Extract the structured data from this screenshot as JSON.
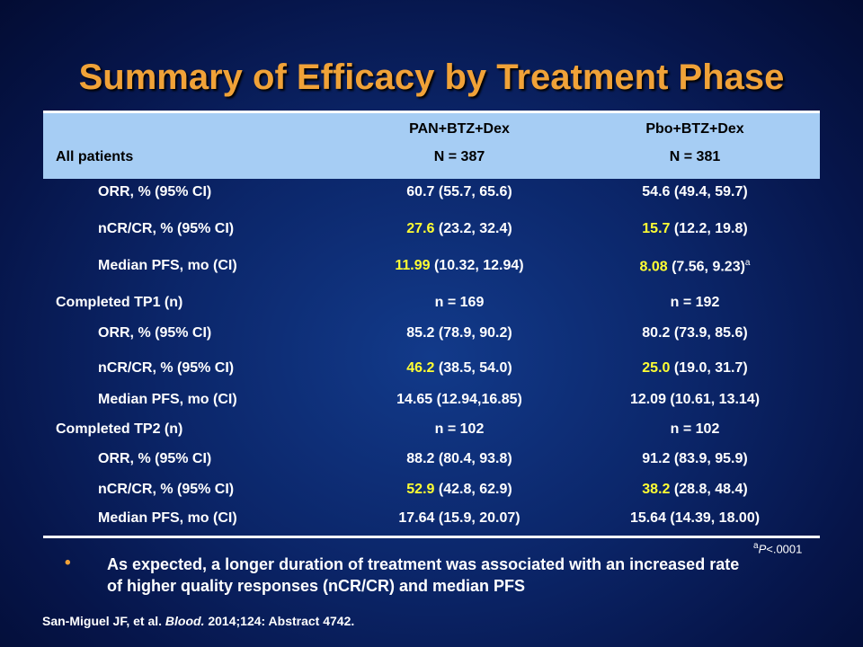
{
  "title": "Summary of Efficacy by Treatment Phase",
  "header": {
    "col1_name": "PAN+BTZ+Dex",
    "col2_name": "Pbo+BTZ+Dex",
    "row_label": "All patients",
    "col1_n": "N = 387",
    "col2_n": "N = 381"
  },
  "rows": [
    {
      "label": "ORR, % (95% CI)",
      "c1_hl": "",
      "c1": "60.7 (55.7, 65.6)",
      "c2_hl": "",
      "c2": "54.6 (49.4, 59.7)"
    },
    {
      "label": "nCR/CR, % (95% CI)",
      "c1_hl": "27.6",
      "c1": " (23.2, 32.4)",
      "c2_hl": "15.7",
      "c2": " (12.2, 19.8)"
    },
    {
      "label": "Median PFS, mo (CI)",
      "c1_hl": "11.99",
      "c1": " (10.32, 12.94)",
      "c2_hl": "8.08",
      "c2": " (7.56, 9.23)",
      "c2_sup": "a"
    },
    {
      "label": "Completed TP1 (n)",
      "c1": "n = 169",
      "c2": "n = 192"
    },
    {
      "label": "ORR, % (95% CI)",
      "c1": "85.2 (78.9, 90.2)",
      "c2": "80.2 (73.9, 85.6)"
    },
    {
      "label": "nCR/CR, % (95% CI)",
      "c1_hl": "46.2",
      "c1": " (38.5, 54.0)",
      "c2_hl": "25.0",
      "c2": " (19.0, 31.7)"
    },
    {
      "label": "Median PFS, mo (CI)",
      "c1": "14.65 (12.94,16.85)",
      "c2": "12.09 (10.61, 13.14)"
    },
    {
      "label": "Completed TP2 (n)",
      "c1": "n = 102",
      "c2": "n = 102"
    },
    {
      "label": "ORR, % (95% CI)",
      "c1": "88.2 (80.4, 93.8)",
      "c2": "91.2 (83.9, 95.9)"
    },
    {
      "label": "nCR/CR, % (95% CI)",
      "c1_hl": "52.9",
      "c1": " (42.8, 62.9)",
      "c2_hl": "38.2",
      "c2": " (28.8, 48.4)"
    },
    {
      "label": "Median PFS, mo (CI)",
      "c1": "17.64 (15.9, 20.07)",
      "c2": "15.64 (14.39, 18.00)"
    }
  ],
  "footnote": {
    "sup": "a",
    "p": "P",
    "rest": "<.0001"
  },
  "bullet": {
    "marker": "•",
    "text": "As expected, a longer duration of treatment was associated with an increased rate of higher quality responses (nCR/CR) and median PFS"
  },
  "citation": {
    "authors": "San-Miguel JF, et al. ",
    "journal": "Blood.",
    "rest": " 2014;124: Abstract 4742."
  },
  "colors": {
    "title": "#f0a238",
    "header_bg": "#a6cdf4",
    "highlight": "#ffff33"
  }
}
